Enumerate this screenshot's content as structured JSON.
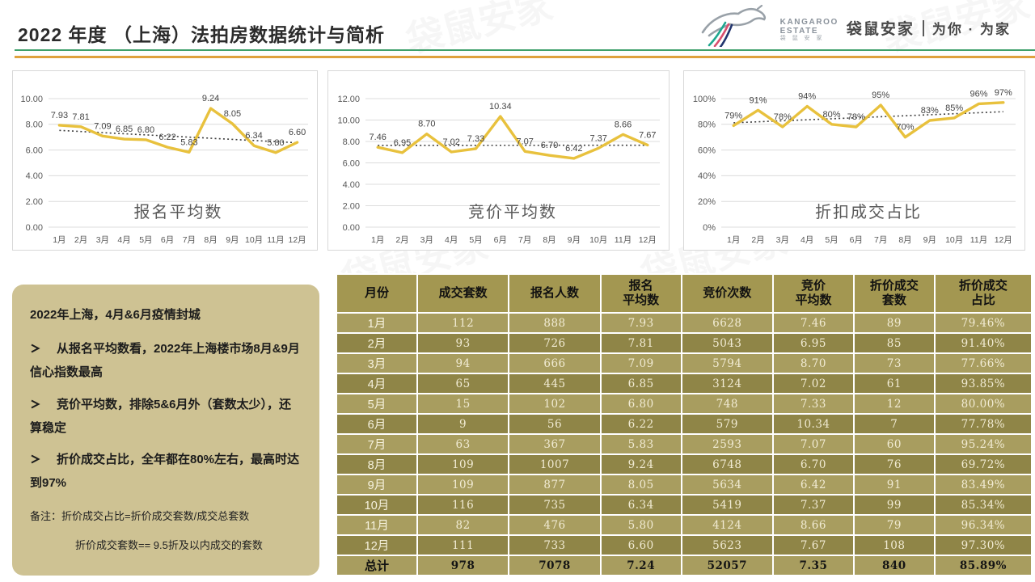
{
  "header": {
    "title": "2022 年度 （上海）法拍房数据统计与简析",
    "brand_name": "袋鼠安家",
    "brand_slogan": "为你 · 为家",
    "logo_text_top": "KANGAROO",
    "logo_text_mid": "ESTATE",
    "logo_text_sub": "袋 鼠 安 家"
  },
  "watermark_text": "袋鼠安家",
  "colors": {
    "gold_line": "#E8C13D",
    "trend_line": "#3F3F3F",
    "rule_green": "#3FA06B",
    "rule_orange": "#DFA23E",
    "table_header_bg": "#A39751",
    "row_light_bg": "#A89D5F",
    "row_dark_bg": "#8F8547",
    "table_text_light": "#F1EBD3",
    "notes_bg": "#CEC293",
    "chart_text": "#595959"
  },
  "chart_data": [
    {
      "type": "line",
      "title": "报名平均数",
      "categories": [
        "1月",
        "2月",
        "3月",
        "4月",
        "5月",
        "6月",
        "7月",
        "8月",
        "9月",
        "10月",
        "11月",
        "12月"
      ],
      "values": [
        7.93,
        7.81,
        7.09,
        6.85,
        6.8,
        6.22,
        5.83,
        9.24,
        8.05,
        6.34,
        5.8,
        6.6
      ],
      "labels": [
        "7.93",
        "7.81",
        "7.09",
        "6.85",
        "6.80",
        "6.22",
        "5.83",
        "9.24",
        "8.05",
        "6.34",
        "5.80",
        "6.60"
      ],
      "ylim": [
        0,
        10
      ],
      "ytick_values": [
        10,
        8,
        6,
        4,
        2,
        0
      ],
      "ytick_labels": [
        "10.00",
        "8.00",
        "6.00",
        "4.00",
        "2.00",
        "0.00"
      ],
      "grid": true,
      "trendline": "linear-dotted",
      "legend": "none"
    },
    {
      "type": "line",
      "title": "竞价平均数",
      "categories": [
        "1月",
        "2月",
        "3月",
        "4月",
        "5月",
        "6月",
        "7月",
        "8月",
        "9月",
        "10月",
        "11月",
        "12月"
      ],
      "values": [
        7.46,
        6.95,
        8.7,
        7.02,
        7.33,
        10.34,
        7.07,
        6.7,
        6.42,
        7.37,
        8.66,
        7.67
      ],
      "labels": [
        "7.46",
        "6.95",
        "8.70",
        "7.02",
        "7.33",
        "10.34",
        "7.07",
        "6.70",
        "6.42",
        "7.37",
        "8.66",
        "7.67"
      ],
      "ylim": [
        0,
        12
      ],
      "ytick_values": [
        12,
        10,
        8,
        6,
        4,
        2,
        0
      ],
      "ytick_labels": [
        "12.00",
        "10.00",
        "8.00",
        "6.00",
        "4.00",
        "2.00",
        "0.00"
      ],
      "grid": true,
      "trendline": "linear-dotted",
      "legend": "none"
    },
    {
      "type": "line",
      "title": "折扣成交占比",
      "categories": [
        "1月",
        "2月",
        "3月",
        "4月",
        "5月",
        "6月",
        "7月",
        "8月",
        "9月",
        "10月",
        "11月",
        "12月"
      ],
      "values": [
        79,
        91,
        78,
        94,
        80,
        78,
        95,
        70,
        83,
        85,
        96,
        97
      ],
      "labels": [
        "79%",
        "91%",
        "78%",
        "94%",
        "80%",
        "78%",
        "95%",
        "70%",
        "83%",
        "85%",
        "96%",
        "97%"
      ],
      "ylim": [
        0,
        100
      ],
      "ytick_values": [
        100,
        80,
        60,
        40,
        20,
        0
      ],
      "ytick_labels": [
        "100%",
        "80%",
        "60%",
        "40%",
        "20%",
        "0%"
      ],
      "grid": true,
      "trendline": "linear-dotted",
      "legend": "none"
    }
  ],
  "notes": {
    "headline": "2022年上海，4月&6月疫情封城",
    "bullet_char": "➢",
    "bullets": [
      "从报名平均数看，2022年上海楼市场8月&9月信心指数最高",
      "竞价平均数，排除5&6月外（套数太少），还算稳定",
      "折价成交占比，全年都在80%左右，最高时达到97%"
    ],
    "remark1": "备注：折价成交占比=折价成交套数/成交总套数",
    "remark2": "折价成交套数== 9.5折及以内成交的套数"
  },
  "table": {
    "headers": [
      "月份",
      "成交套数",
      "报名人数",
      "报名\n平均数",
      "竞价次数",
      "竞价\n平均数",
      "折价成交\n套数",
      "折价成交\n占比"
    ],
    "rows": [
      [
        "1月",
        "112",
        "888",
        "7.93",
        "6628",
        "7.46",
        "89",
        "79.46%"
      ],
      [
        "2月",
        "93",
        "726",
        "7.81",
        "5043",
        "6.95",
        "85",
        "91.40%"
      ],
      [
        "3月",
        "94",
        "666",
        "7.09",
        "5794",
        "8.70",
        "73",
        "77.66%"
      ],
      [
        "4月",
        "65",
        "445",
        "6.85",
        "3124",
        "7.02",
        "61",
        "93.85%"
      ],
      [
        "5月",
        "15",
        "102",
        "6.80",
        "748",
        "7.33",
        "12",
        "80.00%"
      ],
      [
        "6月",
        "9",
        "56",
        "6.22",
        "579",
        "10.34",
        "7",
        "77.78%"
      ],
      [
        "7月",
        "63",
        "367",
        "5.83",
        "2593",
        "7.07",
        "60",
        "95.24%"
      ],
      [
        "8月",
        "109",
        "1007",
        "9.24",
        "6748",
        "6.70",
        "76",
        "69.72%"
      ],
      [
        "9月",
        "109",
        "877",
        "8.05",
        "5634",
        "6.42",
        "91",
        "83.49%"
      ],
      [
        "10月",
        "116",
        "735",
        "6.34",
        "5419",
        "7.37",
        "99",
        "85.34%"
      ],
      [
        "11月",
        "82",
        "476",
        "5.80",
        "4124",
        "8.66",
        "79",
        "96.34%"
      ],
      [
        "12月",
        "111",
        "733",
        "6.60",
        "5623",
        "7.67",
        "108",
        "97.30%"
      ]
    ],
    "total": [
      "总计",
      "978",
      "7078",
      "7.24",
      "52057",
      "7.35",
      "840",
      "85.89%"
    ]
  }
}
